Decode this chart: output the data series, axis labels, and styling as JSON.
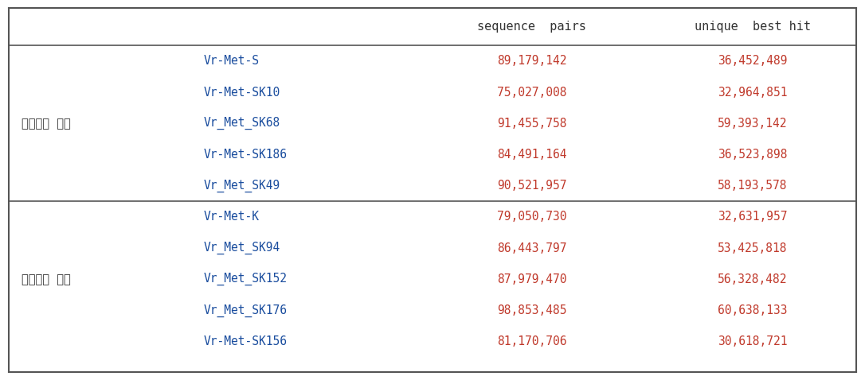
{
  "header": [
    "",
    "",
    "sequence  pairs",
    "unique  best hit"
  ],
  "groups": [
    {
      "group_label": "동시등숙  높음",
      "rows": [
        [
          "Vr-Met-S",
          "89,179,142",
          "36,452,489"
        ],
        [
          "Vr-Met-SK10",
          "75,027,008",
          "32,964,851"
        ],
        [
          "Vr_Met_SK68",
          "91,455,758",
          "59,393,142"
        ],
        [
          "Vr-Met-SK186",
          "84,491,164",
          "36,523,898"
        ],
        [
          "Vr_Met_SK49",
          "90,521,957",
          "58,193,578"
        ]
      ]
    },
    {
      "group_label": "동시등숙  낙음",
      "rows": [
        [
          "Vr-Met-K",
          "79,050,730",
          "32,631,957"
        ],
        [
          "Vr_Met_SK94",
          "86,443,797",
          "53,425,818"
        ],
        [
          "Vr_Met_SK152",
          "87,979,470",
          "56,328,482"
        ],
        [
          "Vr_Met_SK176",
          "98,853,485",
          "60,638,133"
        ],
        [
          "Vr-Met-SK156",
          "81,170,706",
          "30,618,721"
        ]
      ]
    }
  ],
  "col_label_color": "#333333",
  "group_label_color": "#333333",
  "sample_color": "#1a4d9e",
  "number_color": "#c0392b",
  "background_color": "#ffffff",
  "border_color": "#555555",
  "figsize": [
    10.86,
    4.78
  ],
  "dpi": 100
}
